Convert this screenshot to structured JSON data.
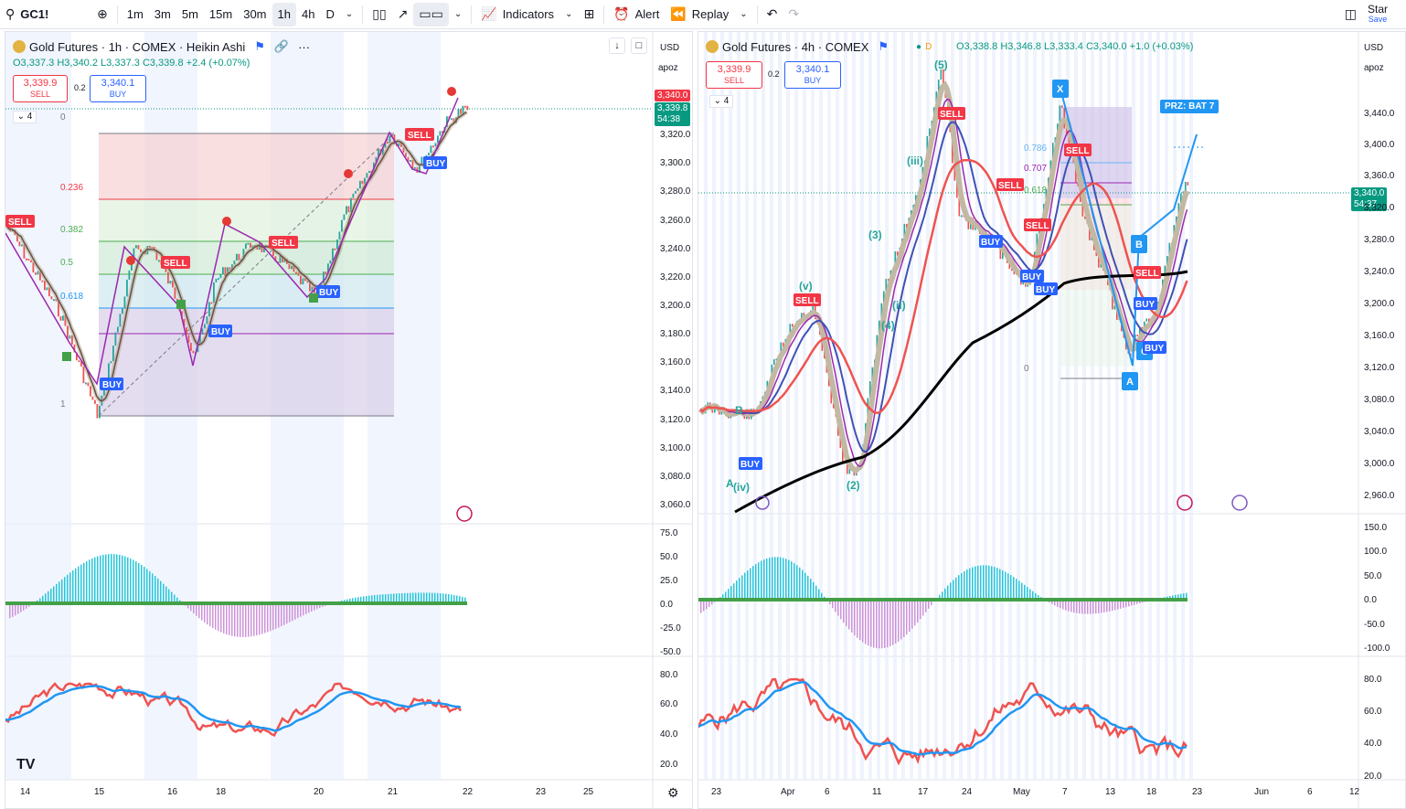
{
  "toolbar": {
    "symbol": "GC1!",
    "intervals": [
      "1m",
      "3m",
      "5m",
      "15m",
      "30m",
      "1h",
      "4h",
      "D"
    ],
    "active_interval": "1h",
    "indicators_label": "Indicators",
    "alert_label": "Alert",
    "replay_label": "Replay",
    "star_label": "Star",
    "save_label": "Save"
  },
  "left": {
    "title": "Gold Futures · 1h · COMEX · Heikin Ashi",
    "ohlc": {
      "o": "O3,337.3",
      "h": "H3,340.2",
      "l": "L3,337.3",
      "c": "C3,339.8",
      "chg": "+2.4 (+0.07%)"
    },
    "sell_price": "3,339.9",
    "sell_label": "SELL",
    "spread": "0.2",
    "buy_price": "3,340.1",
    "buy_label": "BUY",
    "layer_count": "4",
    "currency": "USD",
    "scale_mode": "apoz",
    "price_axis": [
      "3,320.0",
      "3,300.0",
      "3,280.0",
      "3,260.0",
      "3,240.0",
      "3,220.0",
      "3,200.0",
      "3,180.0",
      "3,160.0",
      "3,140.0",
      "3,120.0",
      "3,100.0",
      "3,080.0",
      "3,060.0"
    ],
    "last_price": "3,340.0",
    "current_price": "3,339.8",
    "countdown": "54:38",
    "osc_axis": [
      "75.0",
      "50.0",
      "25.0",
      "0.0",
      "-25.0",
      "-50.0"
    ],
    "rsi_axis": [
      "80.0",
      "60.0",
      "40.0",
      "20.0"
    ],
    "time_axis": [
      "14",
      "15",
      "16",
      "18",
      "20",
      "21",
      "22",
      "23",
      "25"
    ],
    "fib": [
      "0",
      "0.236",
      "0.382",
      "0.5",
      "0.618",
      "1"
    ],
    "signals": {
      "sell": "SELL",
      "buy": "BUY"
    }
  },
  "right": {
    "title": "Gold Futures · 4h · COMEX",
    "ohlc": {
      "o": "O3,338.8",
      "h": "H3,346.8",
      "l": "L3,333.4",
      "c": "C3,340.0",
      "chg": "+1.0 (+0.03%)"
    },
    "sell_price": "3,339.9",
    "sell_label": "SELL",
    "spread": "0.2",
    "buy_price": "3,340.1",
    "buy_label": "BUY",
    "layer_count": "4",
    "currency": "USD",
    "scale_mode": "apoz",
    "price_axis": [
      "3,440.0",
      "3,400.0",
      "3,360.0",
      "3,320.0",
      "3,280.0",
      "3,240.0",
      "3,200.0",
      "3,160.0",
      "3,120.0",
      "3,080.0",
      "3,040.0",
      "3,000.0",
      "2,960.0"
    ],
    "current_price": "3,340.0",
    "countdown": "54:37",
    "osc_axis": [
      "150.0",
      "100.0",
      "50.0",
      "0.0",
      "-50.0",
      "-100.0"
    ],
    "rsi_axis": [
      "80.0",
      "60.0",
      "40.0",
      "20.0"
    ],
    "time_axis": [
      "23",
      "Apr",
      "6",
      "11",
      "17",
      "24",
      "May",
      "7",
      "13",
      "18",
      "23",
      "Jun",
      "6",
      "12"
    ],
    "fib": [
      "0.786",
      "0.707",
      "0.618",
      "0"
    ],
    "prz_label": "PRZ: BAT 7",
    "waves": [
      "(5)",
      "(iii)",
      "(3)",
      "(v)",
      "(4)",
      "(ii)",
      "(iv)",
      "(2)",
      "A",
      "B",
      "C"
    ],
    "xabcd": [
      "X",
      "A",
      "B",
      "C"
    ],
    "signals": {
      "sell": "SELL",
      "buy": "BUY"
    }
  }
}
